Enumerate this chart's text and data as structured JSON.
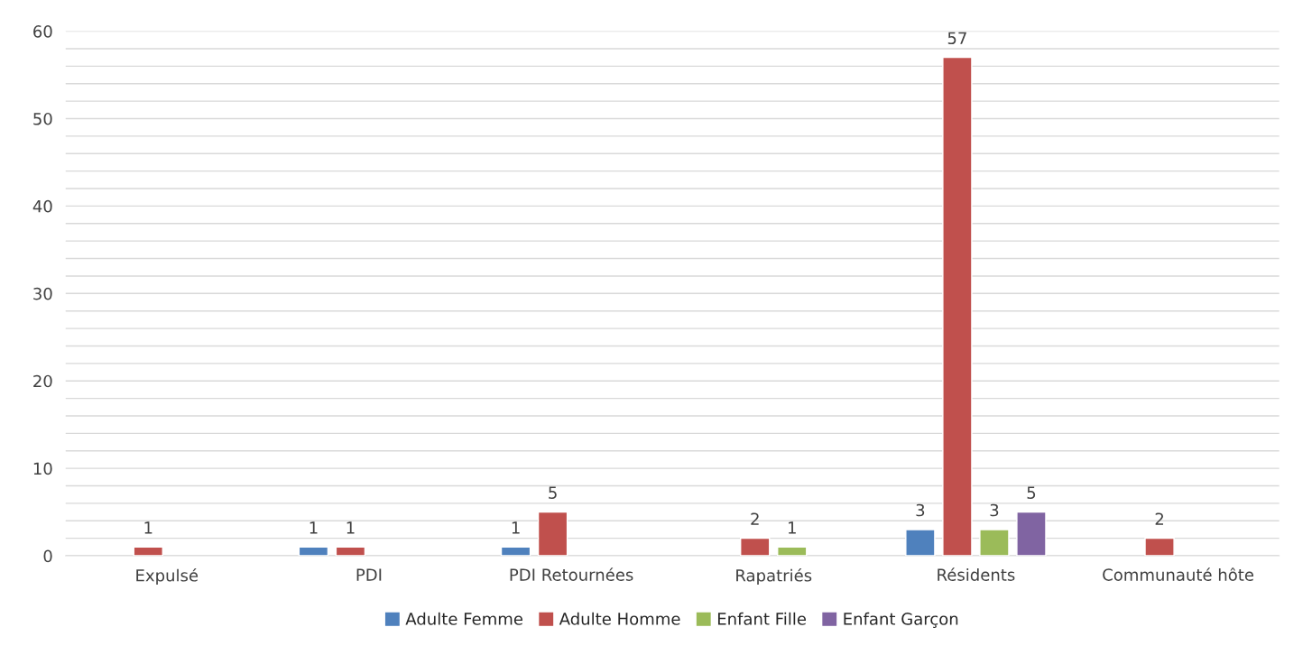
{
  "chart_data": {
    "type": "bar",
    "categories": [
      "Expulsé",
      "PDI",
      "PDI Retournées",
      "Rapatriés",
      "Résidents",
      "Communauté hôte"
    ],
    "series": [
      {
        "name": "Adulte Femme",
        "color": "#4f81bd",
        "values": [
          null,
          1,
          1,
          null,
          3,
          null
        ]
      },
      {
        "name": "Adulte Homme",
        "color": "#c0504d",
        "values": [
          1,
          1,
          5,
          2,
          57,
          2
        ]
      },
      {
        "name": "Enfant Fille",
        "color": "#9bbb59",
        "values": [
          null,
          null,
          null,
          1,
          3,
          null
        ]
      },
      {
        "name": "Enfant Garçon",
        "color": "#8064a2",
        "values": [
          null,
          null,
          null,
          null,
          5,
          null
        ]
      }
    ],
    "ylim": [
      0,
      60
    ],
    "yticks": [
      0,
      {
        "value": 2,
        "label": null
      },
      {
        "value": 4,
        "label": null
      },
      {
        "value": 6,
        "label": null
      },
      {
        "value": 8,
        "label": null
      },
      10,
      {
        "value": 12,
        "label": null
      },
      {
        "value": 14,
        "label": null
      },
      {
        "value": 16,
        "label": null
      },
      {
        "value": 18,
        "label": null
      },
      20,
      {
        "value": 22,
        "label": null
      },
      {
        "value": 24,
        "label": null
      },
      {
        "value": 26,
        "label": null
      },
      {
        "value": 28,
        "label": null
      },
      30,
      {
        "value": 32,
        "label": null
      },
      {
        "value": 34,
        "label": null
      },
      {
        "value": 36,
        "label": null
      },
      {
        "value": 38,
        "label": null
      },
      40,
      {
        "value": 42,
        "label": null
      },
      {
        "value": 44,
        "label": null
      },
      {
        "value": 46,
        "label": null
      },
      {
        "value": 48,
        "label": null
      },
      50,
      {
        "value": 52,
        "label": null
      },
      {
        "value": 54,
        "label": null
      },
      {
        "value": 56,
        "label": null
      },
      {
        "value": 58,
        "label": null
      },
      60
    ],
    "grid": "y",
    "legend": "bottom",
    "data_labels": true
  }
}
